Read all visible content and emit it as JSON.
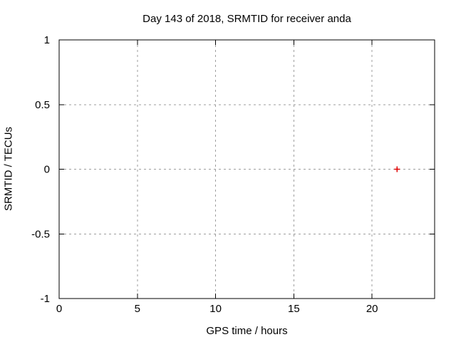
{
  "chart_data": {
    "type": "scatter",
    "title": "Day 143 of 2018, SRMTID for receiver anda",
    "xlabel": "GPS time / hours",
    "ylabel": "SRMTID / TECUs",
    "xlim": [
      0,
      24
    ],
    "ylim": [
      -1,
      1
    ],
    "xticks": [
      0,
      5,
      10,
      15,
      20
    ],
    "yticks": [
      -1,
      -0.5,
      0,
      0.5,
      1
    ],
    "grid": true,
    "legend_position": "none",
    "series": [
      {
        "name": "SRMTID",
        "marker": "plus",
        "color": "#e00000",
        "points": [
          {
            "x": 21.6,
            "y": 0
          }
        ]
      }
    ],
    "colors": {
      "axis": "#000000",
      "grid": "#9e9e9e",
      "text": "#000000",
      "background": "#ffffff"
    }
  }
}
